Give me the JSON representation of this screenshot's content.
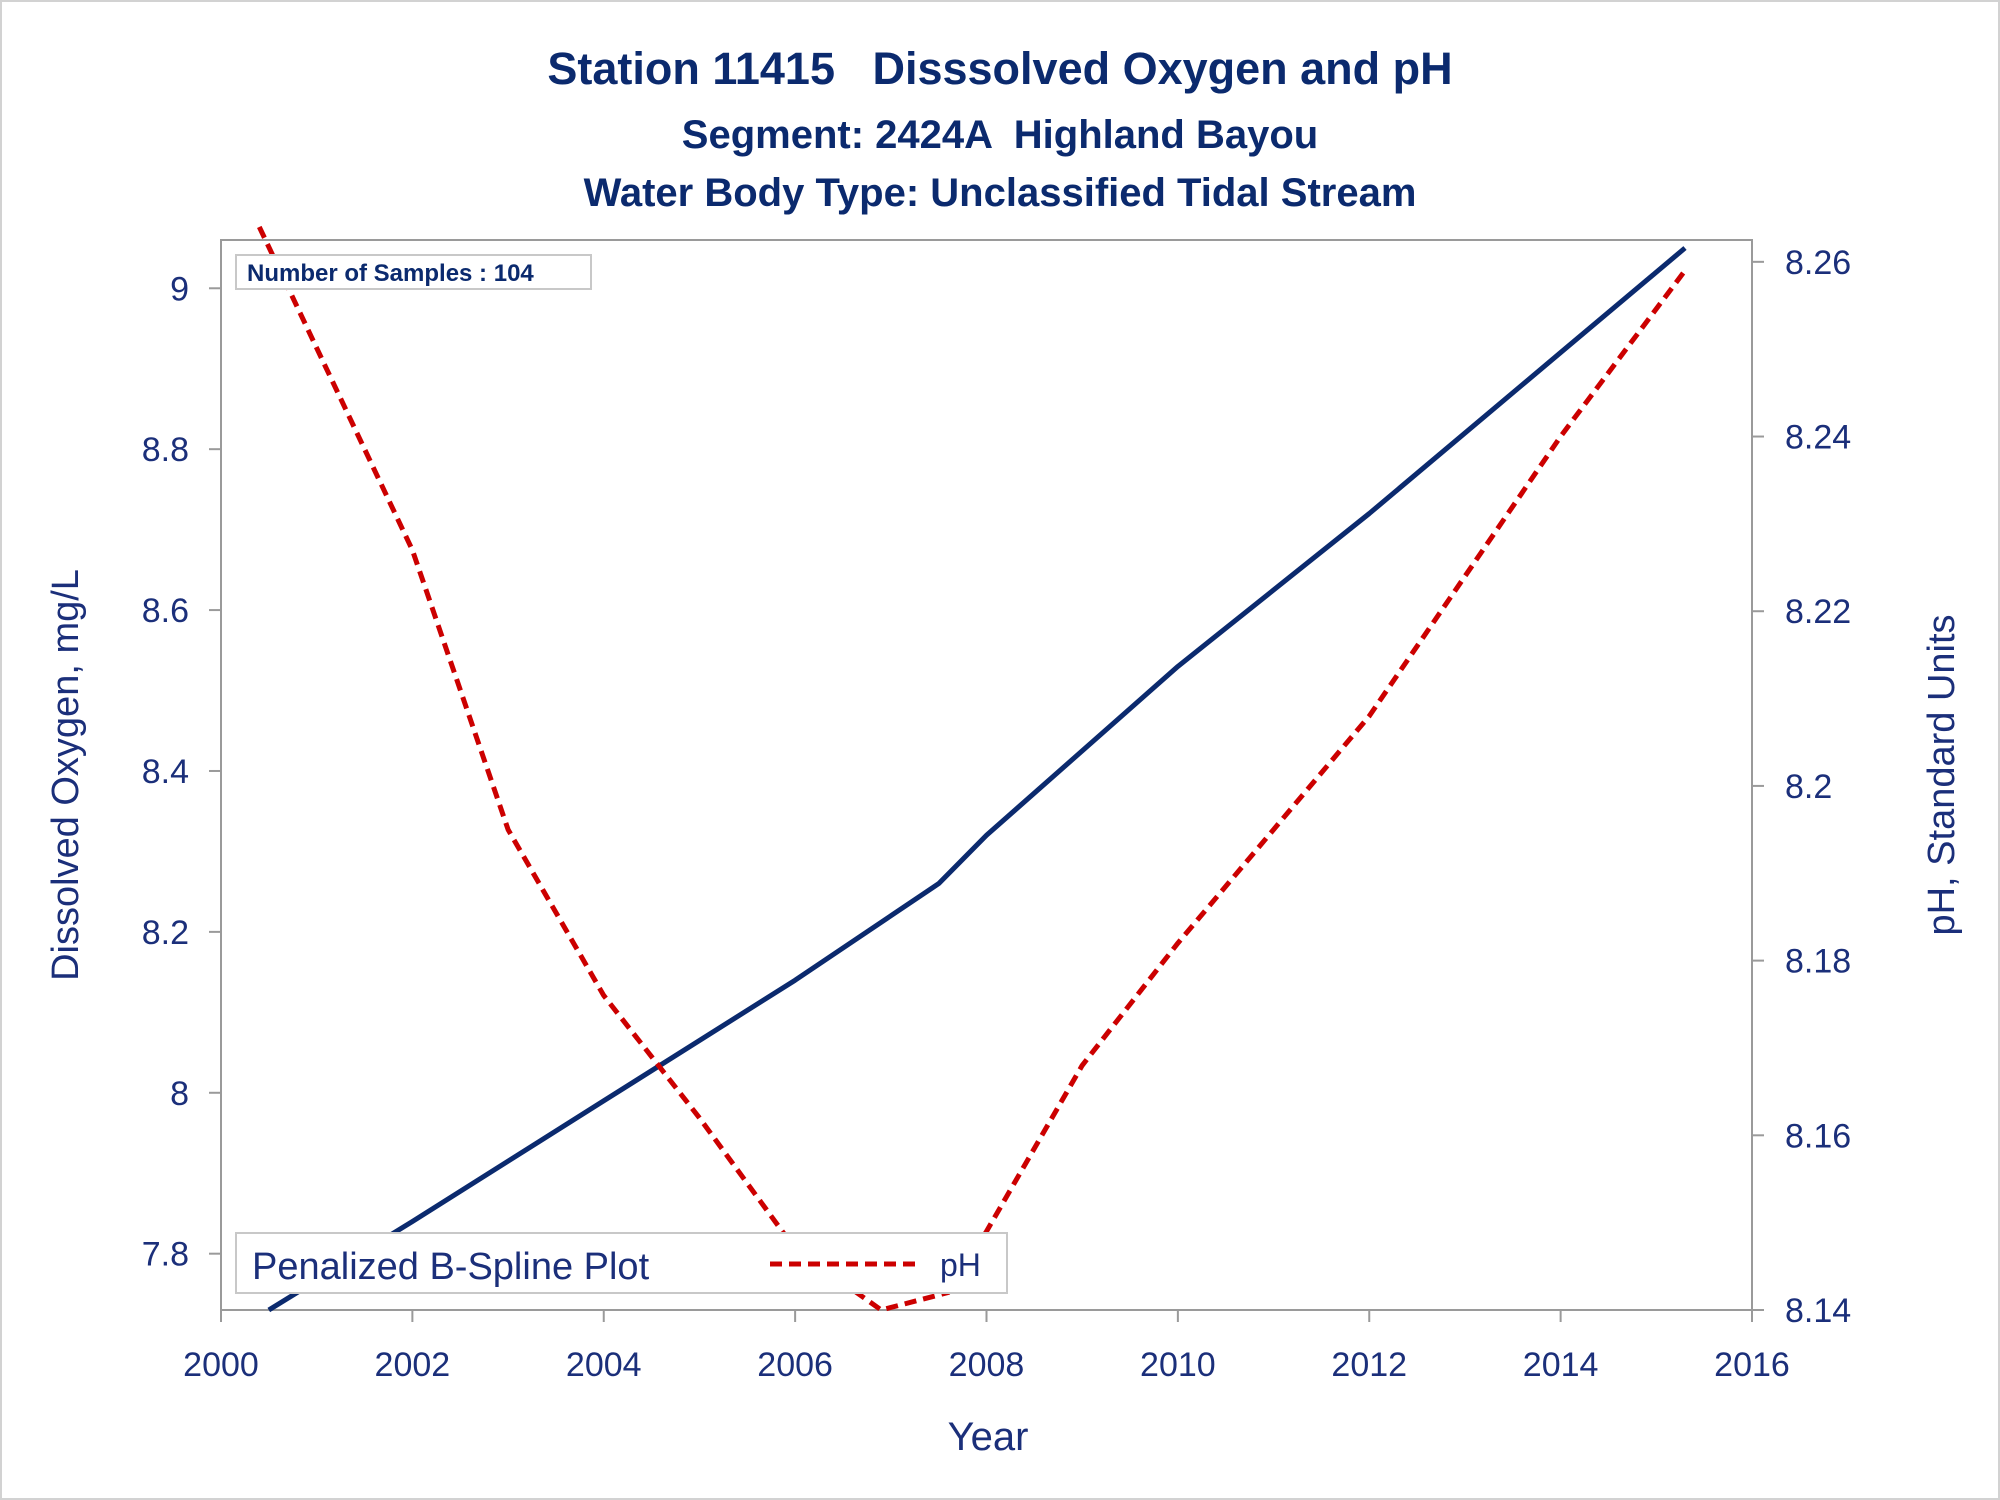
{
  "chart_data": {
    "type": "line",
    "title": "Station 11415   Disssolved Oxygen and pH",
    "subtitle": "Segment: 2424A  Highland Bayou",
    "subtitle2": "Water Body Type: Unclassified Tidal Stream",
    "xlabel": "Year",
    "ylabel_left": "Dissolved Oxygen, mg/L",
    "ylabel_right": "pH, Standard Units",
    "xlim": [
      2000,
      2016
    ],
    "ylim_left": [
      7.73,
      9.06
    ],
    "ylim_right": [
      8.14,
      8.2625
    ],
    "x_ticks": [
      "2000",
      "2002",
      "2004",
      "2006",
      "2008",
      "2010",
      "2012",
      "2014",
      "2016"
    ],
    "y_ticks_left": [
      "7.8",
      "8",
      "8.2",
      "8.4",
      "8.6",
      "8.8",
      "9"
    ],
    "y_ticks_right": [
      "8.14",
      "8.16",
      "8.18",
      "8.2",
      "8.22",
      "8.24",
      "8.26"
    ],
    "annotation": "Number of Samples : 104",
    "legend": {
      "title": "Penalized B-Spline Plot",
      "entries": [
        "pH"
      ],
      "placement": "bottom-left"
    },
    "series": [
      {
        "axis": "left",
        "color": "#0b2a6e",
        "style": "solid",
        "x": [
          2000.5,
          2002,
          2004,
          2006,
          2007.5,
          2008,
          2010,
          2012,
          2014,
          2015.3
        ],
        "y": [
          7.73,
          7.84,
          7.99,
          8.14,
          8.26,
          8.32,
          8.53,
          8.72,
          8.92,
          9.05
        ]
      },
      {
        "name": "pH",
        "axis": "right",
        "color": "#cc0000",
        "style": "dashed",
        "x": [
          2000.4,
          2002,
          2003,
          2004,
          2005,
          2006,
          2006.9,
          2007.6,
          2008,
          2009,
          2010,
          2012,
          2014,
          2015.3
        ],
        "y": [
          8.264,
          8.227,
          8.195,
          8.176,
          8.162,
          8.147,
          8.14,
          8.142,
          8.149,
          8.168,
          8.182,
          8.208,
          8.24,
          8.259
        ]
      }
    ]
  }
}
